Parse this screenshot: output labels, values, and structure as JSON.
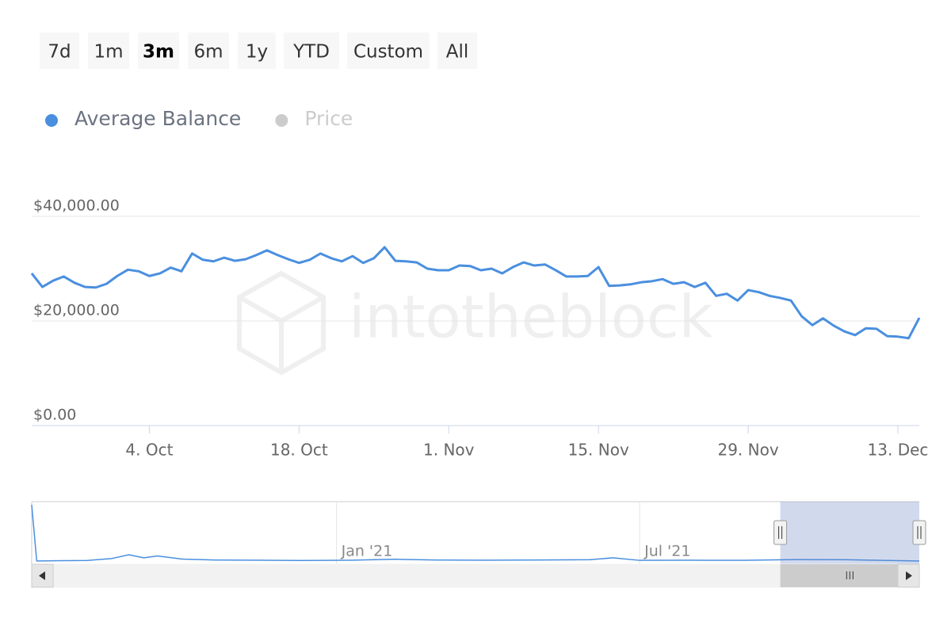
{
  "range_selector": {
    "buttons": [
      "7d",
      "1m",
      "3m",
      "6m",
      "1y",
      "YTD",
      "Custom",
      "All"
    ],
    "selected": 2
  },
  "watermark": "intotheblock",
  "chart_data": [
    {
      "type": "line",
      "x": [
        "2021-09-23",
        "2021-09-24",
        "2021-09-25",
        "2021-09-26",
        "2021-09-27",
        "2021-09-28",
        "2021-09-29",
        "2021-09-30",
        "2021-10-01",
        "2021-10-02",
        "2021-10-03",
        "2021-10-04",
        "2021-10-05",
        "2021-10-06",
        "2021-10-07",
        "2021-10-08",
        "2021-10-09",
        "2021-10-10",
        "2021-10-11",
        "2021-10-12",
        "2021-10-13",
        "2021-10-14",
        "2021-10-15",
        "2021-10-16",
        "2021-10-17",
        "2021-10-18",
        "2021-10-19",
        "2021-10-20",
        "2021-10-21",
        "2021-10-22",
        "2021-10-23",
        "2021-10-24",
        "2021-10-25",
        "2021-10-26",
        "2021-10-27",
        "2021-10-28",
        "2021-10-29",
        "2021-10-30",
        "2021-10-31",
        "2021-11-01",
        "2021-11-02",
        "2021-11-03",
        "2021-11-04",
        "2021-11-05",
        "2021-11-06",
        "2021-11-07",
        "2021-11-08",
        "2021-11-09",
        "2021-11-10",
        "2021-11-11",
        "2021-11-12",
        "2021-11-13",
        "2021-11-14",
        "2021-11-15",
        "2021-11-16",
        "2021-11-17",
        "2021-11-18",
        "2021-11-19",
        "2021-11-20",
        "2021-11-21",
        "2021-11-22",
        "2021-11-23",
        "2021-11-24",
        "2021-11-25",
        "2021-11-26",
        "2021-11-27",
        "2021-11-28",
        "2021-11-29",
        "2021-11-30",
        "2021-12-01",
        "2021-12-02",
        "2021-12-03",
        "2021-12-04",
        "2021-12-05",
        "2021-12-06",
        "2021-12-07",
        "2021-12-08",
        "2021-12-09",
        "2021-12-10",
        "2021-12-11",
        "2021-12-12",
        "2021-12-13",
        "2021-12-14",
        "2021-12-15"
      ],
      "series": [
        {
          "name": "Average Balance",
          "color": "#4a8fdf",
          "visible": true,
          "values": [
            29100,
            26500,
            27700,
            28500,
            27300,
            26500,
            26400,
            27100,
            28600,
            29800,
            29500,
            28600,
            29100,
            30200,
            29500,
            32900,
            31700,
            31400,
            32100,
            31500,
            31800,
            32600,
            33500,
            32600,
            31800,
            31100,
            31700,
            32900,
            32000,
            31400,
            32400,
            31100,
            32000,
            34100,
            31500,
            31400,
            31200,
            30000,
            29700,
            29700,
            30600,
            30500,
            29700,
            30000,
            29100,
            30300,
            31200,
            30600,
            30800,
            29700,
            28500,
            28500,
            28600,
            30300,
            26700,
            26800,
            27000,
            27400,
            27600,
            28000,
            27100,
            27400,
            26500,
            27300,
            24800,
            25200,
            23900,
            25900,
            25500,
            24800,
            24400,
            23900,
            20900,
            19200,
            20500,
            19100,
            18000,
            17300,
            18600,
            18500,
            17100,
            17000,
            16700,
            20600
          ]
        },
        {
          "name": "Price",
          "color": "#cccccc",
          "visible": false
        }
      ],
      "xlim": [
        "2021-09-23",
        "2021-12-15"
      ],
      "xticks": [
        {
          "value": "2021-10-04",
          "label": "4. Oct"
        },
        {
          "value": "2021-10-18",
          "label": "18. Oct"
        },
        {
          "value": "2021-11-01",
          "label": "1. Nov"
        },
        {
          "value": "2021-11-15",
          "label": "15. Nov"
        },
        {
          "value": "2021-11-29",
          "label": "29. Nov"
        },
        {
          "value": "2021-12-13",
          "label": "13. Dec"
        }
      ],
      "ylim": [
        0,
        40000
      ],
      "yticks": [
        {
          "value": 0,
          "label": "$0.00"
        },
        {
          "value": 20000,
          "label": "$20,000.00"
        },
        {
          "value": 40000,
          "label": "$40,000.00"
        }
      ],
      "grid": true
    },
    {
      "type": "line",
      "x": [
        "2020-07-03",
        "2020-07-06",
        "2020-07-20",
        "2020-08-05",
        "2020-08-20",
        "2020-08-30",
        "2020-09-08",
        "2020-09-16",
        "2020-10-01",
        "2020-10-20",
        "2020-11-15",
        "2020-12-10",
        "2021-01-10",
        "2021-02-05",
        "2021-03-01",
        "2021-04-01",
        "2021-05-01",
        "2021-06-01",
        "2021-06-15",
        "2021-07-01",
        "2021-08-01",
        "2021-09-01",
        "2021-10-01",
        "2021-11-01",
        "2021-12-15"
      ],
      "series": [
        {
          "name": "Average Balance",
          "color": "#4a8fdf",
          "visible": true,
          "values": [
            470000,
            20000,
            22000,
            24000,
            40000,
            70000,
            45000,
            60000,
            35000,
            28000,
            26000,
            24000,
            26000,
            34000,
            28000,
            26000,
            28000,
            30000,
            45000,
            25000,
            26000,
            25000,
            31000,
            30000,
            20000
          ]
        }
      ],
      "xlim": [
        "2020-07-03",
        "2021-12-15"
      ],
      "xticks": [
        {
          "value": "2021-01-01",
          "label": "Jan '21"
        },
        {
          "value": "2021-07-01",
          "label": "Jul '21"
        }
      ],
      "ylim": [
        0,
        470000
      ]
    }
  ]
}
